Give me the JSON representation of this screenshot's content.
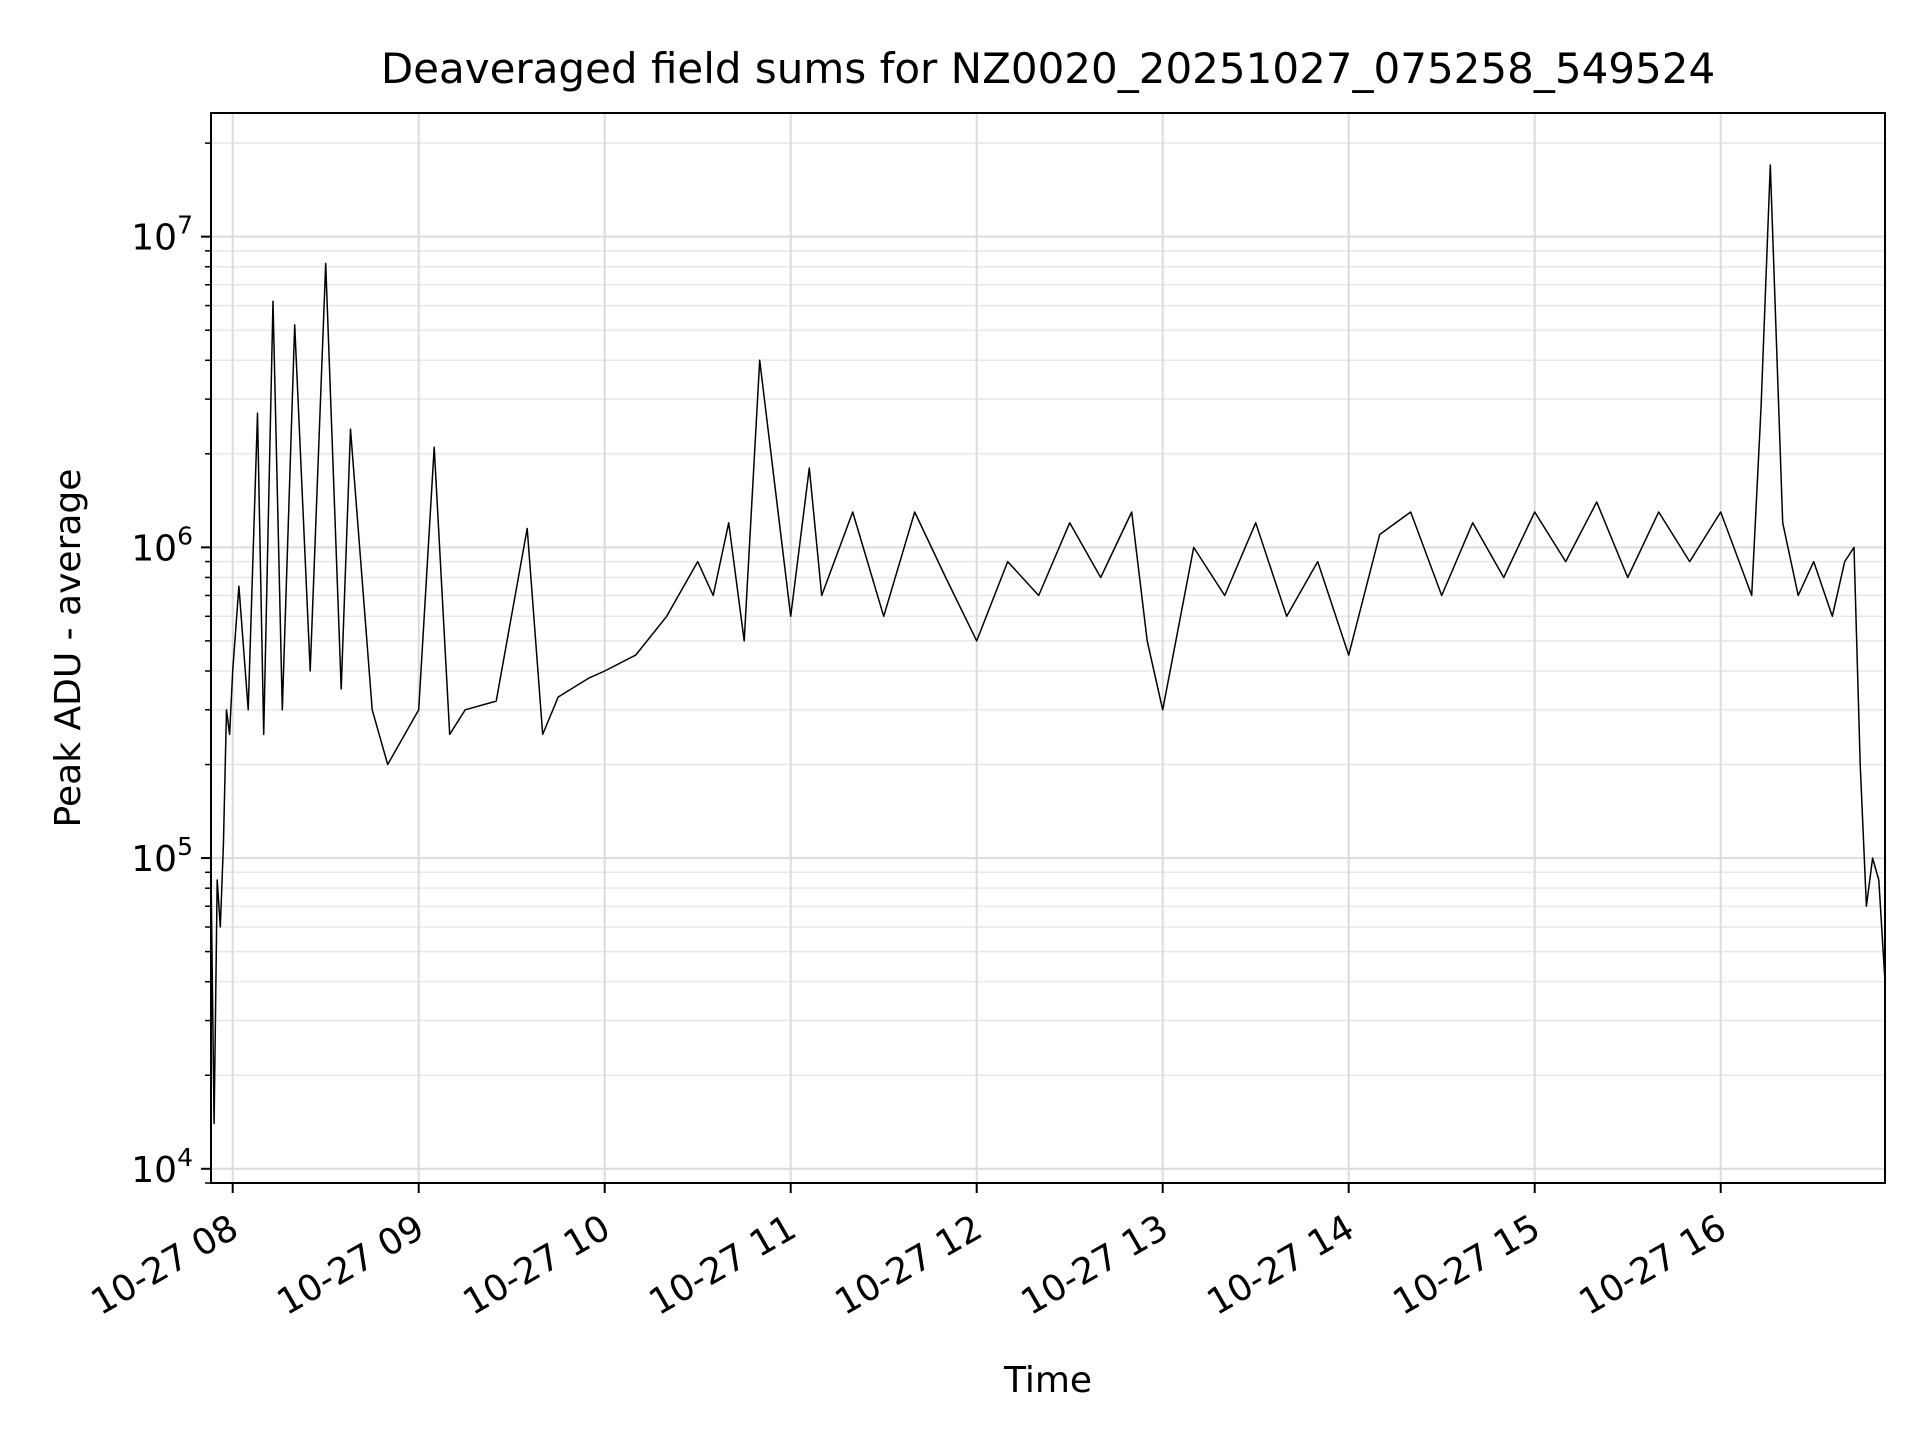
{
  "chart_data": {
    "type": "line",
    "title": "Deaveraged field sums for NZ0020_20251027_075258_549524",
    "xlabel": "Time",
    "ylabel": "Peak ADU - average",
    "y_scale": "log",
    "ylim": [
      9000,
      25000000
    ],
    "xlim": [
      "2025-10-27 07:53",
      "2025-10-27 16:53"
    ],
    "grid": true,
    "grid_minor_y": true,
    "legend": "none",
    "line_color": "#000000",
    "x_ticks": [
      {
        "value": "2025-10-27 08:00",
        "label": "10-27 08"
      },
      {
        "value": "2025-10-27 09:00",
        "label": "10-27 09"
      },
      {
        "value": "2025-10-27 10:00",
        "label": "10-27 10"
      },
      {
        "value": "2025-10-27 11:00",
        "label": "10-27 11"
      },
      {
        "value": "2025-10-27 12:00",
        "label": "10-27 12"
      },
      {
        "value": "2025-10-27 13:00",
        "label": "10-27 13"
      },
      {
        "value": "2025-10-27 14:00",
        "label": "10-27 14"
      },
      {
        "value": "2025-10-27 15:00",
        "label": "10-27 15"
      },
      {
        "value": "2025-10-27 16:00",
        "label": "10-27 16"
      }
    ],
    "y_ticks": [
      {
        "value": 10000,
        "base": "10",
        "exp": "4"
      },
      {
        "value": 100000,
        "base": "10",
        "exp": "5"
      },
      {
        "value": 1000000,
        "base": "10",
        "exp": "6"
      },
      {
        "value": 10000000,
        "base": "10",
        "exp": "7"
      }
    ],
    "series": [
      {
        "x": [
          "2025-10-27 07:53",
          "2025-10-27 07:54",
          "2025-10-27 07:55",
          "2025-10-27 07:56",
          "2025-10-27 07:57",
          "2025-10-27 07:58",
          "2025-10-27 07:59",
          "2025-10-27 08:00",
          "2025-10-27 08:02",
          "2025-10-27 08:05",
          "2025-10-27 08:08",
          "2025-10-27 08:10",
          "2025-10-27 08:13",
          "2025-10-27 08:16",
          "2025-10-27 08:20",
          "2025-10-27 08:25",
          "2025-10-27 08:30",
          "2025-10-27 08:35",
          "2025-10-27 08:38",
          "2025-10-27 08:45",
          "2025-10-27 08:50",
          "2025-10-27 09:00",
          "2025-10-27 09:05",
          "2025-10-27 09:10",
          "2025-10-27 09:15",
          "2025-10-27 09:25",
          "2025-10-27 09:35",
          "2025-10-27 09:40",
          "2025-10-27 09:45",
          "2025-10-27 09:55",
          "2025-10-27 10:00",
          "2025-10-27 10:10",
          "2025-10-27 10:20",
          "2025-10-27 10:30",
          "2025-10-27 10:35",
          "2025-10-27 10:40",
          "2025-10-27 10:45",
          "2025-10-27 10:50",
          "2025-10-27 11:00",
          "2025-10-27 11:06",
          "2025-10-27 11:10",
          "2025-10-27 11:20",
          "2025-10-27 11:30",
          "2025-10-27 11:40",
          "2025-10-27 11:50",
          "2025-10-27 12:00",
          "2025-10-27 12:10",
          "2025-10-27 12:20",
          "2025-10-27 12:30",
          "2025-10-27 12:40",
          "2025-10-27 12:50",
          "2025-10-27 12:55",
          "2025-10-27 13:00",
          "2025-10-27 13:10",
          "2025-10-27 13:20",
          "2025-10-27 13:30",
          "2025-10-27 13:40",
          "2025-10-27 13:50",
          "2025-10-27 14:00",
          "2025-10-27 14:10",
          "2025-10-27 14:20",
          "2025-10-27 14:30",
          "2025-10-27 14:40",
          "2025-10-27 14:50",
          "2025-10-27 15:00",
          "2025-10-27 15:10",
          "2025-10-27 15:20",
          "2025-10-27 15:30",
          "2025-10-27 15:40",
          "2025-10-27 15:50",
          "2025-10-27 16:00",
          "2025-10-27 16:10",
          "2025-10-27 16:13",
          "2025-10-27 16:16",
          "2025-10-27 16:20",
          "2025-10-27 16:25",
          "2025-10-27 16:30",
          "2025-10-27 16:36",
          "2025-10-27 16:40",
          "2025-10-27 16:43",
          "2025-10-27 16:45",
          "2025-10-27 16:47",
          "2025-10-27 16:49",
          "2025-10-27 16:51",
          "2025-10-27 16:53"
        ],
        "y": [
          90000,
          14000,
          85000,
          60000,
          110000,
          300000,
          250000,
          400000,
          750000,
          300000,
          2700000,
          250000,
          6200000,
          300000,
          5200000,
          400000,
          8200000,
          350000,
          2400000,
          300000,
          200000,
          300000,
          2100000,
          250000,
          300000,
          320000,
          1150000,
          250000,
          330000,
          380000,
          400000,
          450000,
          600000,
          900000,
          700000,
          1200000,
          500000,
          4000000,
          600000,
          1800000,
          700000,
          1300000,
          600000,
          1300000,
          800000,
          500000,
          900000,
          700000,
          1200000,
          800000,
          1300000,
          500000,
          300000,
          1000000,
          700000,
          1200000,
          600000,
          900000,
          450000,
          1100000,
          1300000,
          700000,
          1200000,
          800000,
          1300000,
          900000,
          1400000,
          800000,
          1300000,
          900000,
          1300000,
          700000,
          2800000,
          17000000,
          1200000,
          700000,
          900000,
          600000,
          900000,
          1000000,
          200000,
          70000,
          100000,
          85000,
          40000
        ]
      }
    ]
  }
}
